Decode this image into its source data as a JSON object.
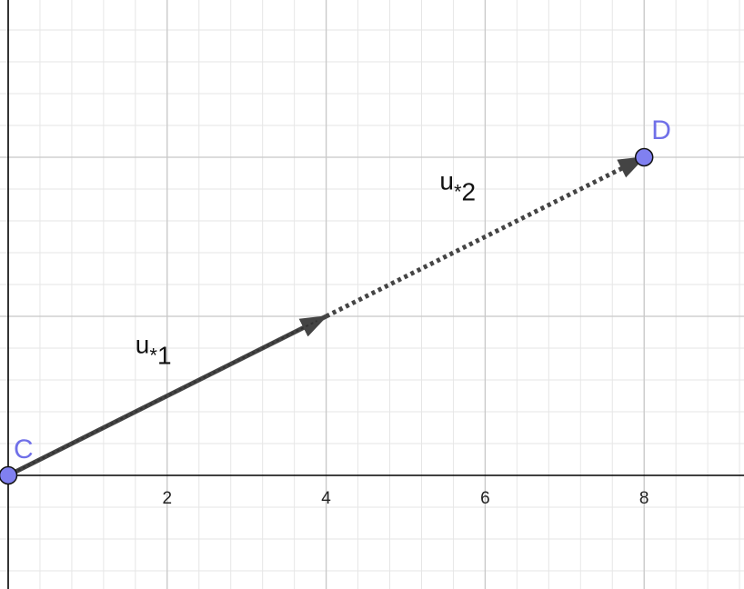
{
  "axes": {
    "x_ticks": [
      2,
      4,
      6,
      8
    ],
    "x_range": [
      -0.1,
      9.3
    ],
    "y_range": [
      -0.7,
      3.0
    ],
    "major_grid": true,
    "minor_grid": true
  },
  "points": [
    {
      "label": "C",
      "x": 0,
      "y": 0
    },
    {
      "label": "D",
      "x": 8,
      "y": 2
    }
  ],
  "vectors": [
    {
      "label_main": "u",
      "label_star": "*",
      "label_index": "1",
      "from": [
        0,
        0
      ],
      "to": [
        4,
        1
      ],
      "style": "solid"
    },
    {
      "label_main": "u",
      "label_star": "*",
      "label_index": "2",
      "from": [
        4,
        1
      ],
      "to": [
        8,
        2
      ],
      "style": "dotted"
    }
  ],
  "colors": {
    "point_fill": "#8080f0",
    "point_label": "#7070e8",
    "vector": "#444444",
    "grid_major": "#c8c8c8",
    "grid_minor": "#e6e6e6",
    "axis": "#000000"
  }
}
